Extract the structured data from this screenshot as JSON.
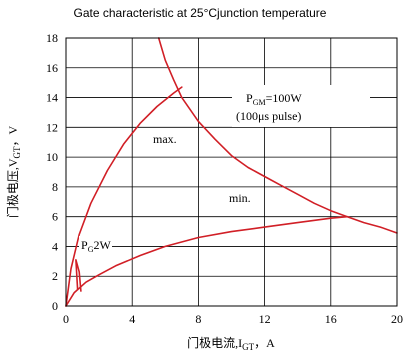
{
  "chart_data": {
    "type": "line",
    "title": "Gate characteristic at 25°Cjunction temperature",
    "xlabel": "门极电流,I",
    "xlabel_sub": "GT",
    "xlabel_unit": "，A",
    "ylabel": "门极电压,V",
    "ylabel_sub": "GT",
    "ylabel_unit": "，V",
    "xlim": [
      0,
      20
    ],
    "ylim": [
      0,
      18
    ],
    "xticks": [
      0,
      4,
      8,
      12,
      16,
      20
    ],
    "yticks": [
      0,
      2,
      4,
      6,
      8,
      10,
      12,
      14,
      16,
      18
    ],
    "grid": true,
    "line_color": "#d11f26",
    "annotations": {
      "pgm_prefix": "P",
      "pgm_sub": "GM",
      "pgm_suffix": "=100W",
      "pulse": "(100μs pulse)",
      "max": "max.",
      "min": "min.",
      "pg_prefix": "P",
      "pg_sub": "G",
      "pg_suffix": "2W"
    },
    "series": [
      {
        "values": [
          [
            0,
            0
          ],
          [
            0.3,
            2.5
          ],
          [
            0.8,
            4.8
          ],
          [
            1.5,
            6.9
          ],
          [
            2.5,
            9.1
          ],
          [
            3.5,
            10.9
          ],
          [
            4.5,
            12.3
          ],
          [
            5.5,
            13.4
          ],
          [
            6.5,
            14.3
          ],
          [
            7,
            14.7
          ]
        ]
      },
      {
        "values": [
          [
            0,
            0
          ],
          [
            0.5,
            0.9
          ],
          [
            1.2,
            1.6
          ],
          [
            2,
            2.1
          ],
          [
            3,
            2.7
          ],
          [
            4.5,
            3.4
          ],
          [
            6,
            4.0
          ],
          [
            8,
            4.6
          ],
          [
            10,
            5.0
          ],
          [
            12,
            5.3
          ],
          [
            14,
            5.6
          ],
          [
            16,
            5.9
          ],
          [
            17,
            6.0
          ]
        ]
      },
      {
        "values": [
          [
            5.6,
            18
          ],
          [
            6,
            16.5
          ],
          [
            6.5,
            15.2
          ],
          [
            7,
            14.0
          ],
          [
            8,
            12.4
          ],
          [
            9,
            11.2
          ],
          [
            10,
            10.1
          ],
          [
            11,
            9.3
          ],
          [
            12,
            8.7
          ],
          [
            13,
            8.1
          ],
          [
            14,
            7.5
          ],
          [
            15,
            6.9
          ],
          [
            16,
            6.4
          ],
          [
            17,
            6.0
          ],
          [
            18,
            5.6
          ],
          [
            19,
            5.3
          ],
          [
            20,
            4.9
          ]
        ]
      },
      {
        "values": [
          [
            0.7,
            1.1
          ],
          [
            0.6,
            3.1
          ],
          [
            0.8,
            2.3
          ],
          [
            0.9,
            1.0
          ]
        ]
      }
    ]
  }
}
